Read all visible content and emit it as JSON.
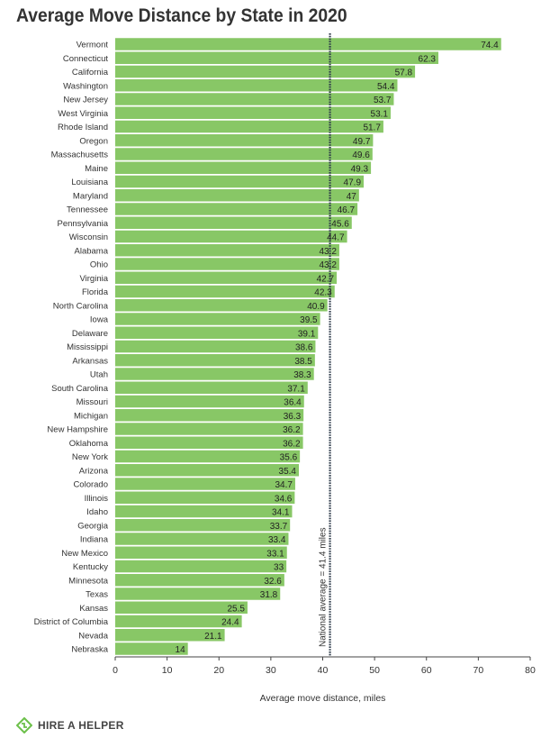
{
  "chart_data": {
    "type": "bar",
    "orientation": "horizontal",
    "title": "Average Move Distance by State in 2020",
    "xlabel": "Average move distance, miles",
    "ylabel": "",
    "xlim": [
      0,
      80
    ],
    "xticks": [
      0,
      10,
      20,
      30,
      40,
      50,
      60,
      70,
      80
    ],
    "grid": false,
    "bar_color": "#88c766",
    "categories": [
      "Vermont",
      "Connecticut",
      "California",
      "Washington",
      "New Jersey",
      "West Virginia",
      "Rhode Island",
      "Oregon",
      "Massachusetts",
      "Maine",
      "Louisiana",
      "Maryland",
      "Tennessee",
      "Pennsylvania",
      "Wisconsin",
      "Alabama",
      "Ohio",
      "Virginia",
      "Florida",
      "North Carolina",
      "Iowa",
      "Delaware",
      "Mississippi",
      "Arkansas",
      "Utah",
      "South Carolina",
      "Missouri",
      "Michigan",
      "New Hampshire",
      "Oklahoma",
      "New York",
      "Arizona",
      "Colorado",
      "Illinois",
      "Idaho",
      "Georgia",
      "Indiana",
      "New Mexico",
      "Kentucky",
      "Minnesota",
      "Texas",
      "Kansas",
      "District of Columbia",
      "Nevada",
      "Nebraska"
    ],
    "values": [
      74.4,
      62.3,
      57.8,
      54.4,
      53.7,
      53.1,
      51.7,
      49.7,
      49.6,
      49.3,
      47.9,
      47,
      46.7,
      45.6,
      44.7,
      43.2,
      43.2,
      42.7,
      42.3,
      40.9,
      39.5,
      39.1,
      38.6,
      38.5,
      38.3,
      37.1,
      36.4,
      36.3,
      36.2,
      36.2,
      35.6,
      35.4,
      34.7,
      34.6,
      34.1,
      33.7,
      33.4,
      33.1,
      33,
      32.6,
      31.8,
      25.5,
      24.4,
      21.1,
      14
    ],
    "reference_line": {
      "value": 41.4,
      "label": "National average = 41.4 miles",
      "style": "dotted"
    }
  },
  "brand": {
    "name": "HIRE A HELPER",
    "color": "#6cc04a"
  }
}
